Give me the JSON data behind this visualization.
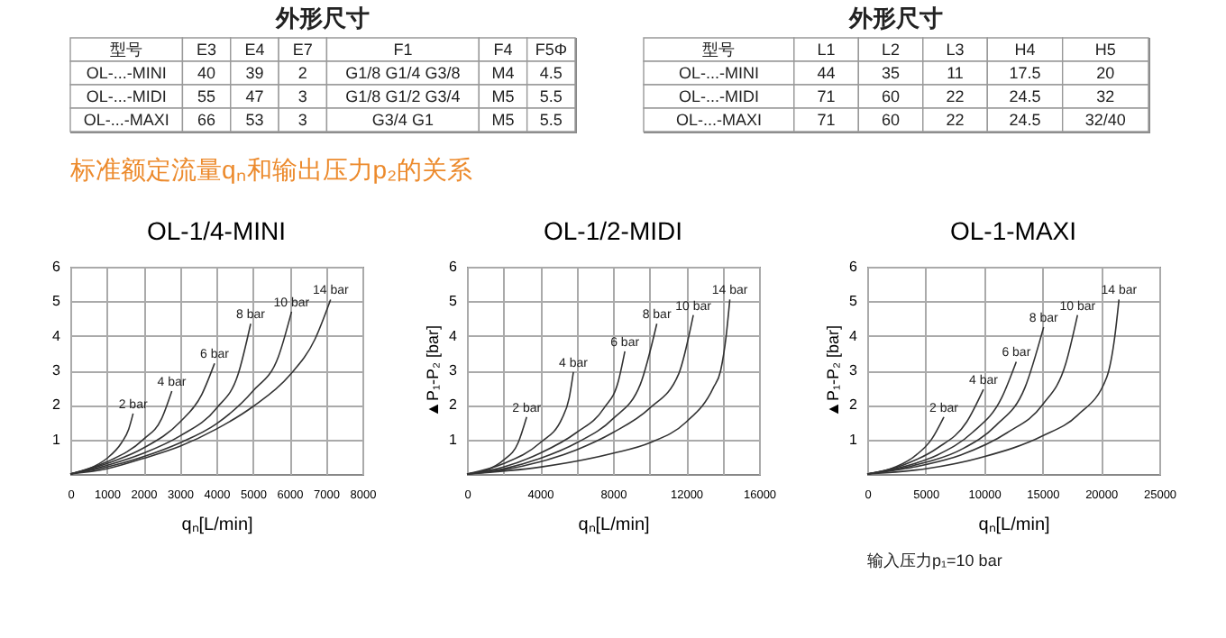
{
  "chart_data": [
    {
      "type": "other",
      "title": "外形尺寸",
      "categories": [
        "型号",
        "E3",
        "E4",
        "E7",
        "F1",
        "F4",
        "F5Φ"
      ],
      "cell_labels": [
        [
          "OL-...-MINI",
          "40",
          "39",
          "2",
          "G1/8  G1/4  G3/8",
          "M4",
          "4.5"
        ],
        [
          "OL-...-MIDI",
          "55",
          "47",
          "3",
          "G1/8  G1/2  G3/4",
          "M5",
          "5.5"
        ],
        [
          "OL-...-MAXI",
          "66",
          "53",
          "3",
          "G3/4  G1",
          "M5",
          "5.5"
        ]
      ]
    },
    {
      "type": "other",
      "title": "外形尺寸",
      "categories": [
        "型号",
        "L1",
        "L2",
        "L3",
        "H4",
        "H5"
      ],
      "cell_labels": [
        [
          "OL-...-MINI",
          "44",
          "35",
          "11",
          "17.5",
          "20"
        ],
        [
          "OL-...-MIDI",
          "71",
          "60",
          "22",
          "24.5",
          "32"
        ],
        [
          "OL-...-MAXI",
          "71",
          "60",
          "22",
          "24.5",
          "32/40"
        ]
      ]
    },
    {
      "type": "other",
      "title": "标准额定流量qₙ和输出压力p₂的关系"
    },
    {
      "type": "line",
      "title": "OL-1/4-MINI",
      "xlabel": "qₙ[L/min]",
      "grid": true,
      "xlim": [
        0,
        8000
      ],
      "ylim": [
        0,
        6
      ],
      "xticks": [
        0,
        1000,
        2000,
        3000,
        4000,
        5000,
        6000,
        7000,
        8000
      ],
      "yticks": [
        1,
        2,
        3,
        4,
        5,
        6
      ],
      "series": [
        {
          "name": "2 bar",
          "color": "#333333",
          "x": [
            0,
            500,
            1000,
            1400,
            1600,
            1720
          ],
          "values": [
            0,
            0.15,
            0.45,
            0.9,
            1.3,
            1.75
          ]
        },
        {
          "name": "4 bar",
          "color": "#333333",
          "x": [
            0,
            1000,
            2000,
            2500,
            2780
          ],
          "values": [
            0,
            0.35,
            1.0,
            1.6,
            2.4
          ]
        },
        {
          "name": "6 bar",
          "color": "#333333",
          "x": [
            0,
            1000,
            2000,
            3000,
            3600,
            3950
          ],
          "values": [
            0,
            0.3,
            0.75,
            1.5,
            2.3,
            3.2
          ]
        },
        {
          "name": "8 bar",
          "color": "#333333",
          "x": [
            0,
            1000,
            2000,
            3000,
            4000,
            4600,
            4940
          ],
          "values": [
            0,
            0.25,
            0.6,
            1.1,
            1.9,
            2.9,
            4.35
          ]
        },
        {
          "name": "10 bar",
          "color": "#333333",
          "x": [
            0,
            1000,
            2000,
            3000,
            4000,
            5000,
            5700,
            6060
          ],
          "values": [
            0,
            0.2,
            0.5,
            0.9,
            1.45,
            2.4,
            3.4,
            4.7
          ]
        },
        {
          "name": "14 bar",
          "color": "#333333",
          "x": [
            0,
            1000,
            2000,
            3000,
            4000,
            5000,
            6000,
            6700,
            7130
          ],
          "values": [
            0,
            0.15,
            0.45,
            0.8,
            1.3,
            1.95,
            2.85,
            3.9,
            5.05
          ]
        }
      ]
    },
    {
      "type": "line",
      "title": "OL-1/2-MIDI",
      "xlabel": "qₙ[L/min]",
      "ylabel": "▲P₁-P₂ [bar]",
      "grid": true,
      "xlim": [
        0,
        16000
      ],
      "ylim": [
        0,
        6
      ],
      "xticks": [
        0,
        {
          "value": 2000,
          "label": null
        },
        4000,
        {
          "value": 6000,
          "label": null
        },
        8000,
        {
          "value": 10000,
          "label": null
        },
        12000,
        {
          "value": 14000,
          "label": null
        },
        16000
      ],
      "yticks": [
        1,
        2,
        3,
        4,
        5,
        6
      ],
      "series": [
        {
          "name": "2 bar",
          "color": "#333333",
          "x": [
            0,
            1000,
            2000,
            2800,
            3270
          ],
          "values": [
            0,
            0.1,
            0.4,
            0.9,
            1.65
          ]
        },
        {
          "name": "4 bar",
          "color": "#333333",
          "x": [
            0,
            2000,
            4000,
            5200,
            5600,
            5830
          ],
          "values": [
            0,
            0.3,
            0.9,
            1.6,
            2.2,
            2.95
          ]
        },
        {
          "name": "6 bar",
          "color": "#333333",
          "x": [
            0,
            2000,
            4000,
            6000,
            7500,
            8300,
            8650
          ],
          "values": [
            0,
            0.2,
            0.6,
            1.2,
            1.9,
            2.7,
            3.55
          ]
        },
        {
          "name": "8 bar",
          "color": "#333333",
          "x": [
            0,
            2000,
            4000,
            6000,
            8000,
            9500,
            10400
          ],
          "values": [
            0,
            0.15,
            0.45,
            0.9,
            1.6,
            2.6,
            4.35
          ]
        },
        {
          "name": "10 bar",
          "color": "#333333",
          "x": [
            0,
            2000,
            4000,
            6000,
            8000,
            10000,
            11600,
            12400
          ],
          "values": [
            0,
            0.12,
            0.35,
            0.7,
            1.2,
            1.9,
            2.9,
            4.6
          ]
        },
        {
          "name": "14 bar",
          "color": "#333333",
          "x": [
            0,
            4000,
            8000,
            10000,
            12000,
            13500,
            13900,
            14200,
            14400
          ],
          "values": [
            0,
            0.2,
            0.6,
            0.9,
            1.5,
            2.5,
            3.0,
            4.0,
            5.05
          ]
        }
      ]
    },
    {
      "type": "line",
      "title": "OL-1-MAXI",
      "xlabel": "qₙ[L/min]",
      "ylabel": "▲P₁-P₂ [bar]",
      "grid": true,
      "xlim": [
        0,
        25000
      ],
      "ylim": [
        0,
        6
      ],
      "xticks": [
        0,
        5000,
        10000,
        15000,
        20000,
        25000
      ],
      "yticks": [
        1,
        2,
        3,
        4,
        5,
        6
      ],
      "annotations": [
        "输入压力p₁=10 bar"
      ],
      "series": [
        {
          "name": "2 bar",
          "color": "#333333",
          "x": [
            0,
            2000,
            4000,
            5500,
            6560
          ],
          "values": [
            0,
            0.15,
            0.5,
            1.0,
            1.65
          ]
        },
        {
          "name": "4 bar",
          "color": "#333333",
          "x": [
            0,
            3000,
            6000,
            8500,
            9950
          ],
          "values": [
            0,
            0.25,
            0.75,
            1.5,
            2.45
          ]
        },
        {
          "name": "6 bar",
          "color": "#333333",
          "x": [
            0,
            3000,
            6000,
            9000,
            11500,
            12760
          ],
          "values": [
            0,
            0.2,
            0.55,
            1.2,
            2.2,
            3.25
          ]
        },
        {
          "name": "8 bar",
          "color": "#333333",
          "x": [
            0,
            4000,
            8000,
            11000,
            13500,
            15100
          ],
          "values": [
            0,
            0.25,
            0.7,
            1.4,
            2.5,
            4.25
          ]
        },
        {
          "name": "10 bar",
          "color": "#333333",
          "x": [
            0,
            4000,
            8000,
            12000,
            15000,
            17000,
            18000
          ],
          "values": [
            0,
            0.2,
            0.55,
            1.2,
            2.0,
            3.2,
            4.6
          ]
        },
        {
          "name": "14 bar",
          "color": "#333333",
          "x": [
            0,
            5000,
            10000,
            15000,
            18000,
            20500,
            21200,
            21550
          ],
          "values": [
            0,
            0.15,
            0.5,
            1.1,
            1.7,
            2.8,
            4.0,
            5.05
          ]
        }
      ]
    }
  ]
}
